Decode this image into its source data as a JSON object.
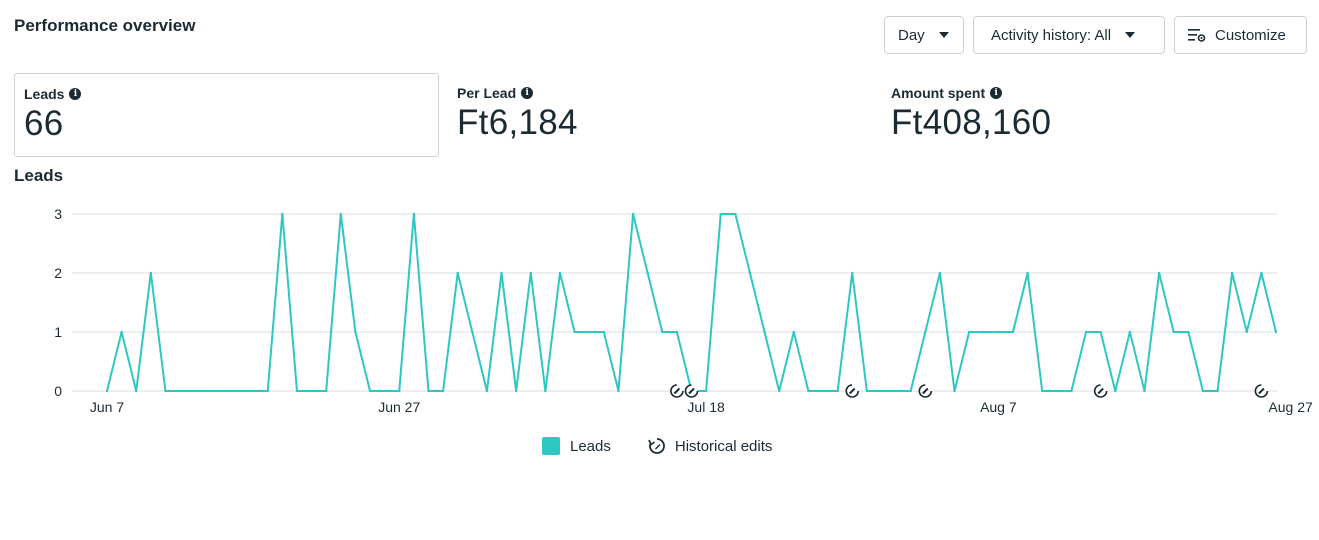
{
  "header": {
    "title": "Performance overview",
    "day_label": "Day",
    "activity_label": "Activity history: All",
    "customize_label": "Customize"
  },
  "metrics": [
    {
      "label": "Leads",
      "value": "66"
    },
    {
      "label": "Per Lead",
      "value": "Ft6,184"
    },
    {
      "label": "Amount spent",
      "value": "Ft408,160"
    }
  ],
  "chart_section": {
    "title": "Leads"
  },
  "colors": {
    "series": "#2ec7c1",
    "grid": "#dadde1",
    "text": "#1c2b33"
  },
  "chart_data": {
    "type": "line",
    "title": "Leads",
    "xlabel": "",
    "ylabel": "",
    "ylim": [
      0,
      3
    ],
    "y_ticks": [
      "0",
      "1",
      "2",
      "3"
    ],
    "x_tick_labels": [
      {
        "label": "Jun 7",
        "index": 0
      },
      {
        "label": "Jun 27",
        "index": 20
      },
      {
        "label": "Jul 18",
        "index": 41
      },
      {
        "label": "Aug 7",
        "index": 61
      },
      {
        "label": "Aug 27",
        "index": 81
      }
    ],
    "series": [
      {
        "name": "Leads",
        "values": [
          0,
          1,
          0,
          2,
          0,
          0,
          0,
          0,
          0,
          0,
          0,
          0,
          3,
          0,
          0,
          0,
          3,
          1,
          0,
          0,
          0,
          3,
          0,
          0,
          2,
          1,
          0,
          2,
          0,
          2,
          0,
          2,
          1,
          1,
          1,
          0,
          3,
          2,
          1,
          1,
          0,
          0,
          3,
          3,
          2,
          1,
          0,
          1,
          0,
          0,
          0,
          2,
          0,
          0,
          0,
          0,
          1,
          2,
          0,
          1,
          1,
          1,
          1,
          2,
          0,
          0,
          0,
          1,
          1,
          0,
          1,
          0,
          2,
          1,
          1,
          0,
          0,
          2,
          1,
          2,
          1
        ]
      }
    ],
    "historical_edits_at": [
      39,
      40,
      51,
      56,
      68,
      79
    ],
    "grid": true,
    "legend_position": "bottom-center"
  },
  "legend": {
    "series_label": "Leads",
    "edits_label": "Historical edits"
  }
}
